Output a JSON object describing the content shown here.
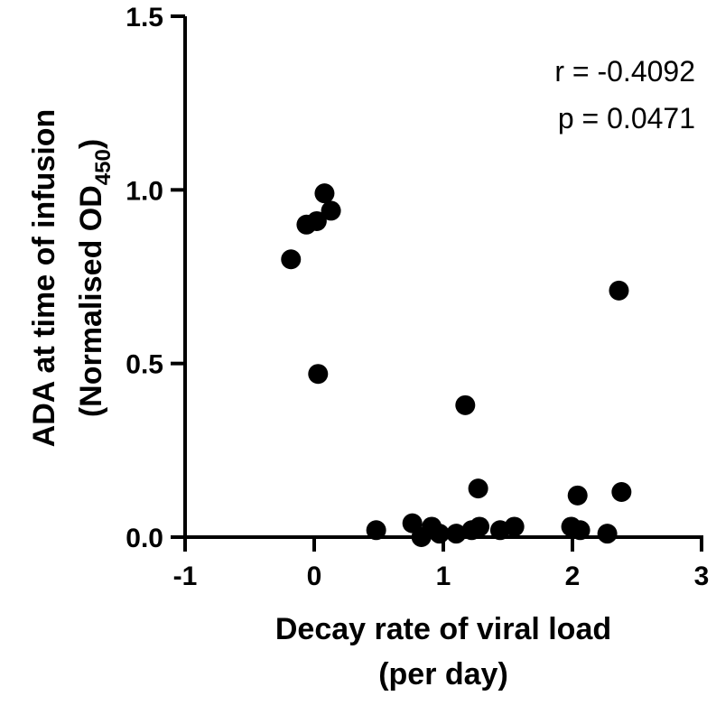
{
  "chart_data": {
    "type": "scatter",
    "title": "",
    "xlabel": "Decay rate of viral load",
    "xlabel_line2": "(per day)",
    "ylabel": "ADA at time of infusion",
    "ylabel_line2_prefix": "(Normalised OD",
    "ylabel_line2_sub": "450",
    "ylabel_line2_suffix": ")",
    "xlim": [
      -1,
      3
    ],
    "ylim": [
      0,
      1.5
    ],
    "xticks": [
      "-1",
      "0",
      "1",
      "2",
      "3"
    ],
    "yticks": [
      "0.0",
      "0.5",
      "1.0",
      "1.5"
    ],
    "grid": false,
    "annotations": [
      "r = -0.4092",
      "p = 0.0471"
    ],
    "color": "#000000",
    "points": [
      {
        "x": 0.08,
        "y": 0.99
      },
      {
        "x": 0.13,
        "y": 0.94
      },
      {
        "x": 0.02,
        "y": 0.91
      },
      {
        "x": -0.06,
        "y": 0.9
      },
      {
        "x": -0.18,
        "y": 0.8
      },
      {
        "x": 0.03,
        "y": 0.47
      },
      {
        "x": 1.17,
        "y": 0.38
      },
      {
        "x": 1.27,
        "y": 0.14
      },
      {
        "x": 2.36,
        "y": 0.71
      },
      {
        "x": 2.04,
        "y": 0.12
      },
      {
        "x": 2.38,
        "y": 0.13
      },
      {
        "x": 0.48,
        "y": 0.02
      },
      {
        "x": 0.76,
        "y": 0.04
      },
      {
        "x": 0.83,
        "y": 0.0
      },
      {
        "x": 0.91,
        "y": 0.03
      },
      {
        "x": 0.97,
        "y": 0.01
      },
      {
        "x": 1.1,
        "y": 0.01
      },
      {
        "x": 1.22,
        "y": 0.02
      },
      {
        "x": 1.28,
        "y": 0.03
      },
      {
        "x": 1.44,
        "y": 0.02
      },
      {
        "x": 1.55,
        "y": 0.03
      },
      {
        "x": 1.99,
        "y": 0.03
      },
      {
        "x": 2.06,
        "y": 0.02
      },
      {
        "x": 2.27,
        "y": 0.01
      }
    ]
  }
}
